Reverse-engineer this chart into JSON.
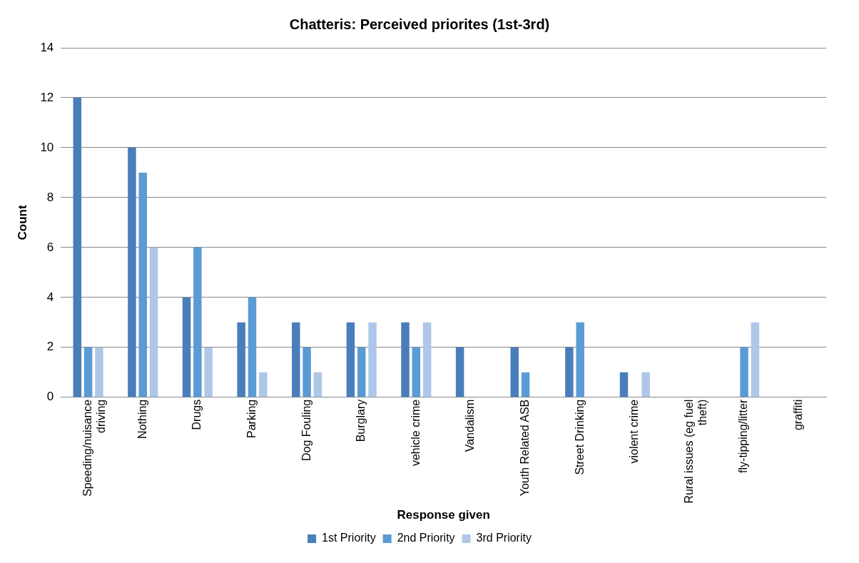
{
  "chart_data": {
    "type": "bar",
    "title": "Chatteris: Perceived priorites (1st-3rd)",
    "xlabel": "Response given",
    "ylabel": "Count",
    "categories": [
      "Speeding/nuisance driving",
      "Nothing",
      "Drugs",
      "Parking",
      "Dog Fouling",
      "Burglary",
      "vehicle crime",
      "Vandalism",
      "Youth Related ASB",
      "Street Drinking",
      "violent crime",
      "Rural issues (eg fuel theft)",
      "fly-tipping/litter",
      "graffiti"
    ],
    "series": [
      {
        "name": "1st Priority",
        "color": "#4a7ebb",
        "values": [
          12,
          10,
          4,
          3,
          3,
          3,
          3,
          2,
          2,
          2,
          1,
          0,
          0,
          0
        ]
      },
      {
        "name": "2nd Priority",
        "color": "#5b9bd5",
        "values": [
          2,
          9,
          6,
          4,
          2,
          2,
          2,
          0,
          1,
          3,
          0,
          0,
          2,
          0
        ]
      },
      {
        "name": "3rd Priority",
        "color": "#aec7e8",
        "values": [
          2,
          6,
          2,
          1,
          1,
          3,
          3,
          0,
          0,
          0,
          1,
          0,
          3,
          0
        ]
      }
    ],
    "ylim": [
      0,
      14
    ],
    "yticks": [
      0,
      2,
      4,
      6,
      8,
      10,
      12,
      14
    ],
    "grid": "y",
    "legend": "bottom"
  }
}
